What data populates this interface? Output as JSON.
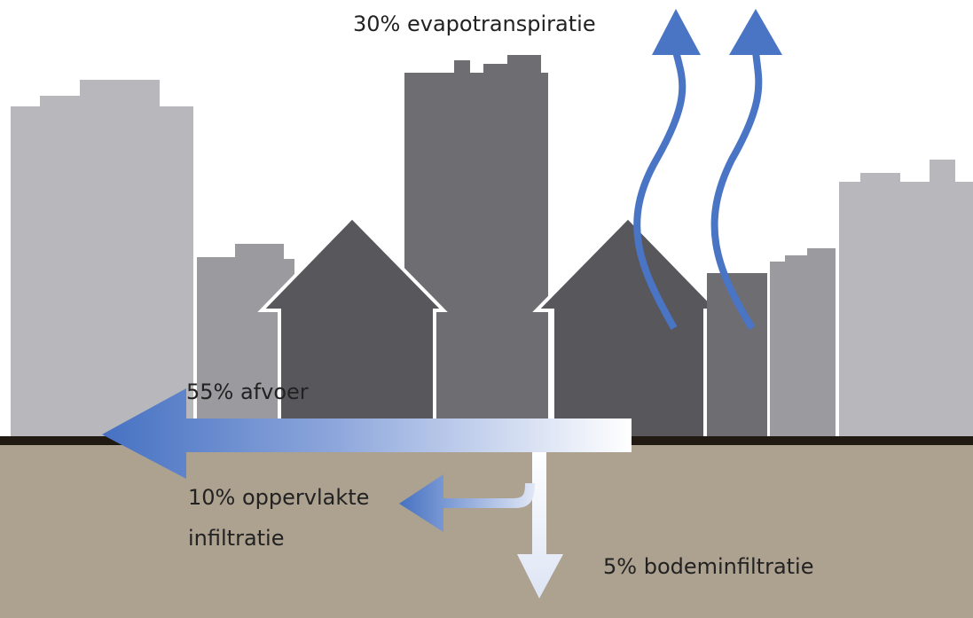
{
  "labels": {
    "evapotranspiration": "30% evapotranspiratie",
    "runoff": "55% afvoer",
    "surface_infiltration": [
      "10% oppervlakte",
      "infiltratie"
    ],
    "soil_infiltration": "5% bodeminfiltratie"
  }
}
